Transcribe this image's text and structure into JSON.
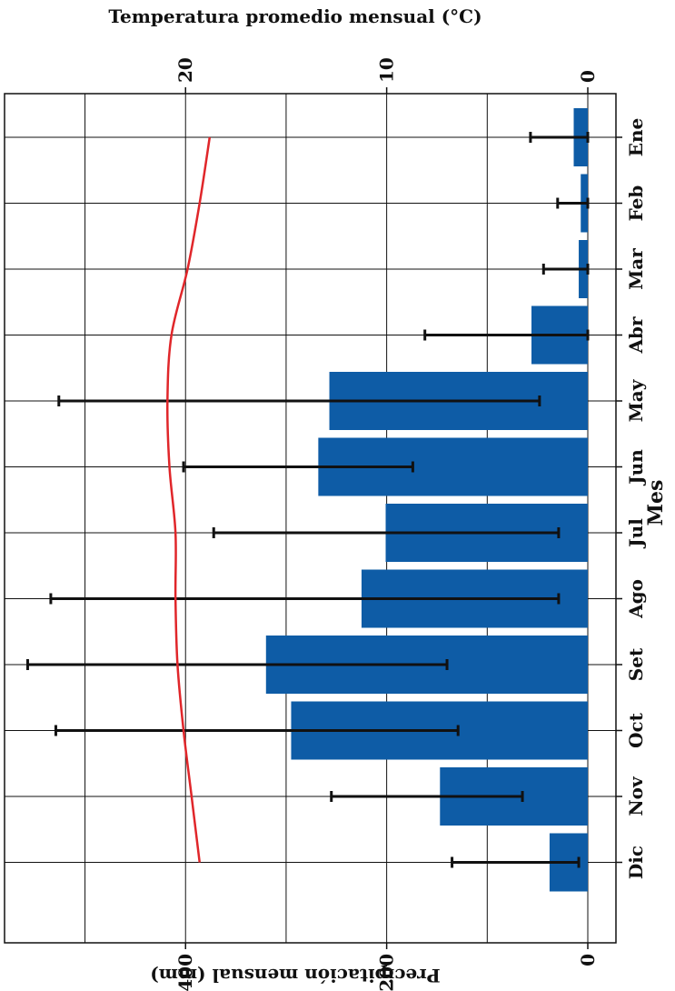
{
  "chart_data": {
    "type": "bar",
    "orientation": "rotated-90",
    "categories": [
      "Ene",
      "Feb",
      "Mar",
      "Abr",
      "May",
      "Jun",
      "Jul",
      "Ago",
      "Set",
      "Oct",
      "Nov",
      "Dic"
    ],
    "series": [
      {
        "name": "Precipitación mensual (mm)",
        "type": "bar",
        "axis": "precipitation",
        "values": [
          14,
          7,
          9,
          56,
          257,
          268,
          201,
          225,
          320,
          295,
          147,
          38
        ],
        "error_low": [
          0,
          0,
          0,
          0,
          48,
          174,
          29,
          29,
          140,
          129,
          65,
          9
        ],
        "error_high": [
          57,
          30,
          44,
          162,
          526,
          402,
          372,
          534,
          557,
          529,
          255,
          135
        ]
      },
      {
        "name": "Temperatura promedio mensual (°C)",
        "type": "line",
        "axis": "temperature",
        "values": [
          18.8,
          19.3,
          19.9,
          20.7,
          20.9,
          20.8,
          20.5,
          20.5,
          20.4,
          20.1,
          19.7,
          19.3
        ]
      }
    ],
    "precipitation_axis": {
      "label": "Precipitación mensual (mm)",
      "range": [
        -28,
        580
      ],
      "ticks": [
        0,
        200,
        400
      ],
      "tick_labels": [
        "0",
        "200",
        "400"
      ]
    },
    "temperature_axis": {
      "label": "Temperatura promedio mensual (°C)",
      "range": [
        -1.4,
        29
      ],
      "ticks": [
        0,
        10,
        20
      ],
      "tick_labels": [
        "0",
        "10",
        "20"
      ]
    },
    "category_axis_label": "Mes",
    "grid": true,
    "colors": {
      "bar": "#0e5ca6",
      "line": "#e0262a",
      "error_bar": "#111111",
      "grid": "#111111"
    }
  }
}
